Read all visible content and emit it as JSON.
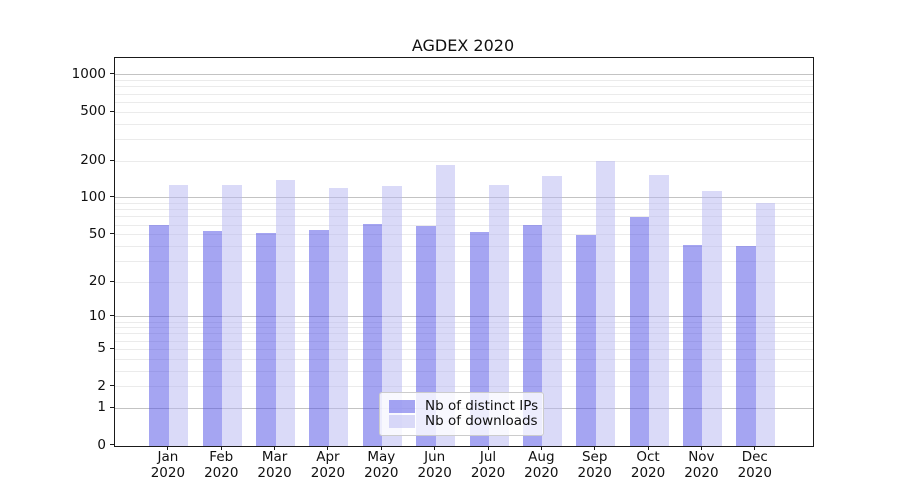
{
  "title": "AGDEX 2020",
  "colors": {
    "series_ips": "rgba(76,76,230,0.5)",
    "series_downloads": "rgba(181,181,241,0.5)",
    "grid_major": "#c3c3c3",
    "grid_minor": "#ebebeb",
    "axis": "#1a1a1a",
    "legend_border": "#cccccc",
    "background": "#ffffff"
  },
  "chart_data": {
    "type": "bar",
    "title": "AGDEX 2020",
    "x_tick_months": [
      "Jan",
      "Feb",
      "Mar",
      "Apr",
      "May",
      "Jun",
      "Jul",
      "Aug",
      "Sep",
      "Oct",
      "Nov",
      "Dec"
    ],
    "x_tick_year": "2020",
    "categories": [
      "Jan 2020",
      "Feb 2020",
      "Mar 2020",
      "Apr 2020",
      "May 2020",
      "Jun 2020",
      "Jul 2020",
      "Aug 2020",
      "Sep 2020",
      "Oct 2020",
      "Nov 2020",
      "Dec 2020"
    ],
    "series": [
      {
        "name": "Nb of distinct IPs",
        "color_key": "series_ips",
        "values": [
          60,
          54,
          52,
          55,
          61,
          59,
          53,
          60,
          50,
          70,
          41,
          40
        ]
      },
      {
        "name": "Nb of downloads",
        "color_key": "series_downloads",
        "values": [
          128,
          128,
          140,
          120,
          126,
          185,
          127,
          150,
          200,
          155,
          113,
          91
        ]
      }
    ],
    "yscale": "log1p",
    "ylim": [
      0,
      1340
    ],
    "ytick_labels": [
      0,
      1,
      2,
      5,
      10,
      20,
      50,
      100,
      200,
      500,
      1000
    ],
    "grid_major_at": [
      1,
      10,
      100,
      1000
    ],
    "grid_minor_at": [
      2,
      3,
      4,
      5,
      6,
      7,
      8,
      9,
      20,
      30,
      40,
      50,
      60,
      70,
      80,
      90,
      200,
      300,
      400,
      500,
      600,
      700,
      800,
      900
    ],
    "grid": "on",
    "legend_position": "lower center"
  },
  "legend": {
    "items": [
      {
        "label": "Nb of distinct IPs"
      },
      {
        "label": "Nb of downloads"
      }
    ]
  }
}
